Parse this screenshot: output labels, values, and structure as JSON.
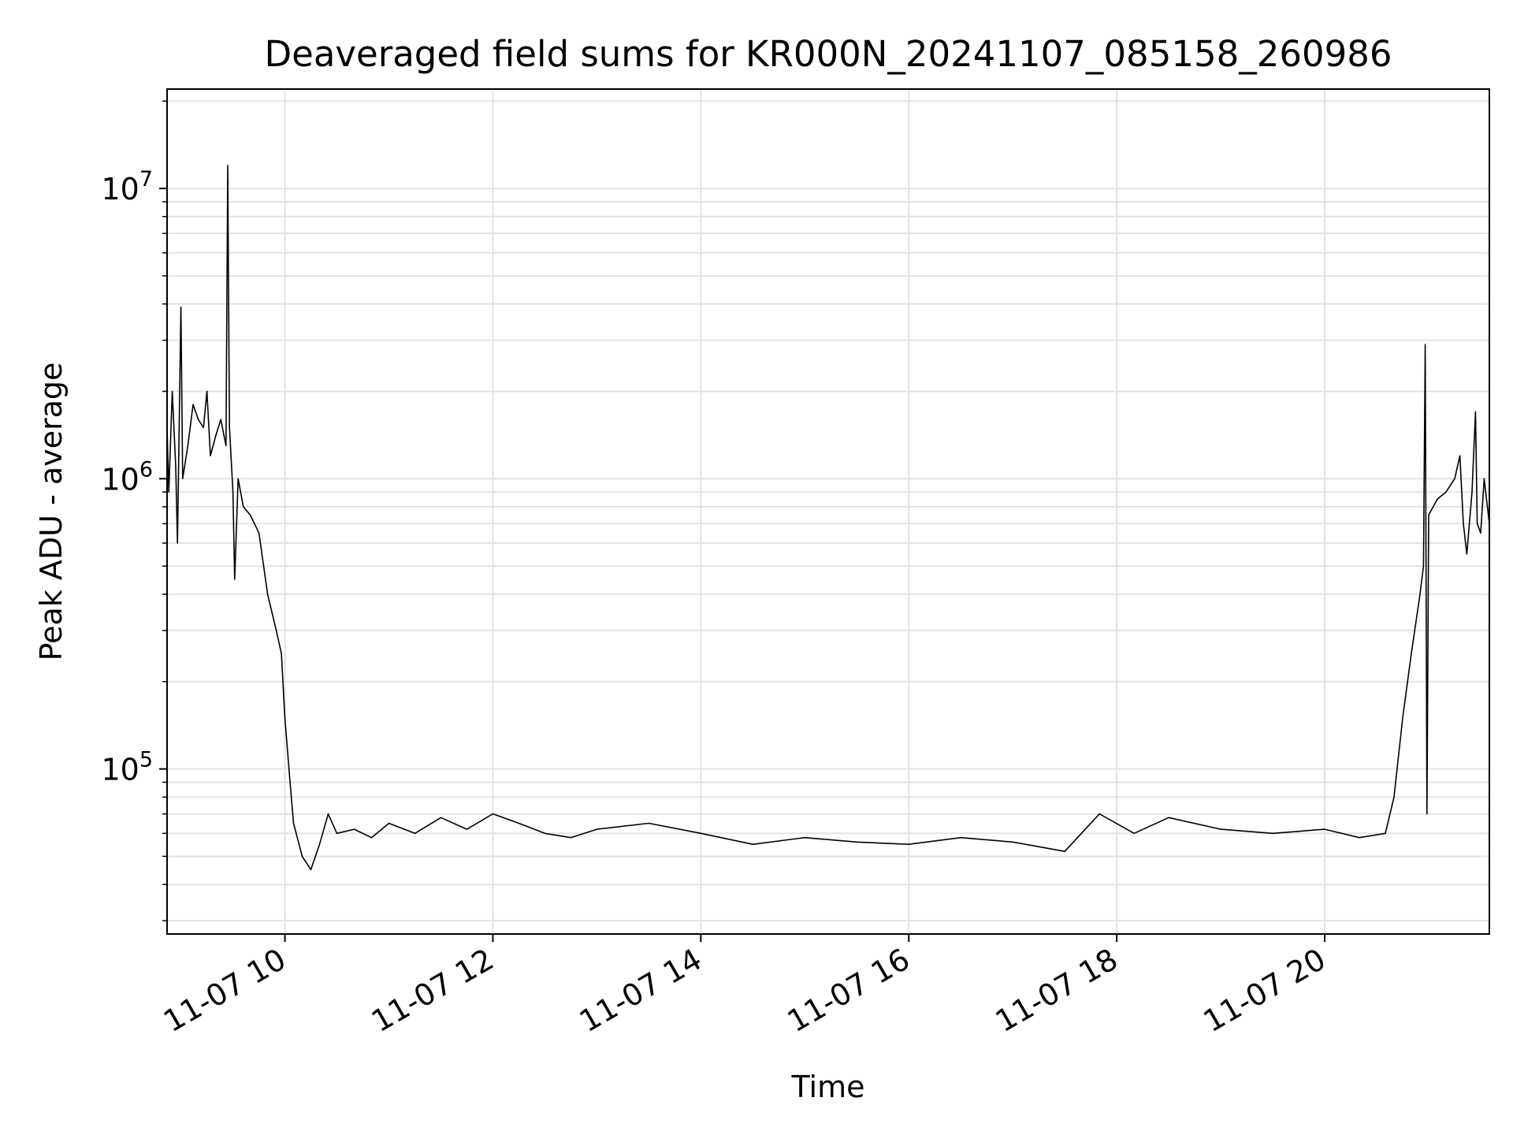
{
  "chart_data": {
    "type": "line",
    "title": "Deaveraged field sums for KR000N_20241107_085158_260986",
    "xlabel": "Time",
    "ylabel": "Peak ADU - average",
    "x_range": [
      "2024-11-07 08:52",
      "2024-11-07 21:35"
    ],
    "x_ticks": [
      "11-07 10",
      "11-07 12",
      "11-07 14",
      "11-07 16",
      "11-07 18",
      "11-07 20"
    ],
    "y_scale": "log",
    "y_range": [
      27000,
      22000000
    ],
    "y_ticks": [
      {
        "base": "10",
        "exp": "5",
        "value": 100000
      },
      {
        "base": "10",
        "exp": "6",
        "value": 1000000
      },
      {
        "base": "10",
        "exp": "7",
        "value": 10000000
      }
    ],
    "grid": true,
    "colors": {
      "line": "#000000",
      "grid": "#e3e3e3",
      "axis": "#000000"
    },
    "series": [
      {
        "points": [
          [
            "2024-11-07 08:52",
            1500000
          ],
          [
            "2024-11-07 08:53",
            900000
          ],
          [
            "2024-11-07 08:55",
            2000000
          ],
          [
            "2024-11-07 08:57",
            1100000
          ],
          [
            "2024-11-07 08:58",
            600000
          ],
          [
            "2024-11-07 09:00",
            3900000
          ],
          [
            "2024-11-07 09:01",
            1000000
          ],
          [
            "2024-11-07 09:04",
            1300000
          ],
          [
            "2024-11-07 09:07",
            1800000
          ],
          [
            "2024-11-07 09:10",
            1600000
          ],
          [
            "2024-11-07 09:13",
            1500000
          ],
          [
            "2024-11-07 09:15",
            2000000
          ],
          [
            "2024-11-07 09:17",
            1200000
          ],
          [
            "2024-11-07 09:20",
            1400000
          ],
          [
            "2024-11-07 09:23",
            1600000
          ],
          [
            "2024-11-07 09:26",
            1300000
          ],
          [
            "2024-11-07 09:27",
            12000000
          ],
          [
            "2024-11-07 09:28",
            1500000
          ],
          [
            "2024-11-07 09:30",
            900000
          ],
          [
            "2024-11-07 09:31",
            450000
          ],
          [
            "2024-11-07 09:33",
            1000000
          ],
          [
            "2024-11-07 09:36",
            800000
          ],
          [
            "2024-11-07 09:40",
            750000
          ],
          [
            "2024-11-07 09:45",
            650000
          ],
          [
            "2024-11-07 09:50",
            400000
          ],
          [
            "2024-11-07 09:55",
            300000
          ],
          [
            "2024-11-07 09:58",
            250000
          ],
          [
            "2024-11-07 10:00",
            150000
          ],
          [
            "2024-11-07 10:03",
            90000
          ],
          [
            "2024-11-07 10:05",
            65000
          ],
          [
            "2024-11-07 10:10",
            50000
          ],
          [
            "2024-11-07 10:15",
            45000
          ],
          [
            "2024-11-07 10:20",
            55000
          ],
          [
            "2024-11-07 10:25",
            70000
          ],
          [
            "2024-11-07 10:30",
            60000
          ],
          [
            "2024-11-07 10:40",
            62000
          ],
          [
            "2024-11-07 10:50",
            58000
          ],
          [
            "2024-11-07 11:00",
            65000
          ],
          [
            "2024-11-07 11:15",
            60000
          ],
          [
            "2024-11-07 11:30",
            68000
          ],
          [
            "2024-11-07 11:45",
            62000
          ],
          [
            "2024-11-07 12:00",
            70000
          ],
          [
            "2024-11-07 12:15",
            65000
          ],
          [
            "2024-11-07 12:30",
            60000
          ],
          [
            "2024-11-07 12:45",
            58000
          ],
          [
            "2024-11-07 13:00",
            62000
          ],
          [
            "2024-11-07 13:30",
            65000
          ],
          [
            "2024-11-07 14:00",
            60000
          ],
          [
            "2024-11-07 14:30",
            55000
          ],
          [
            "2024-11-07 15:00",
            58000
          ],
          [
            "2024-11-07 15:30",
            56000
          ],
          [
            "2024-11-07 16:00",
            55000
          ],
          [
            "2024-11-07 16:30",
            58000
          ],
          [
            "2024-11-07 17:00",
            56000
          ],
          [
            "2024-11-07 17:30",
            52000
          ],
          [
            "2024-11-07 17:50",
            70000
          ],
          [
            "2024-11-07 18:10",
            60000
          ],
          [
            "2024-11-07 18:30",
            68000
          ],
          [
            "2024-11-07 19:00",
            62000
          ],
          [
            "2024-11-07 19:30",
            60000
          ],
          [
            "2024-11-07 20:00",
            62000
          ],
          [
            "2024-11-07 20:20",
            58000
          ],
          [
            "2024-11-07 20:35",
            60000
          ],
          [
            "2024-11-07 20:40",
            80000
          ],
          [
            "2024-11-07 20:45",
            150000
          ],
          [
            "2024-11-07 20:50",
            250000
          ],
          [
            "2024-11-07 20:55",
            400000
          ],
          [
            "2024-11-07 20:57",
            500000
          ],
          [
            "2024-11-07 20:58",
            2900000
          ],
          [
            "2024-11-07 20:59",
            70000
          ],
          [
            "2024-11-07 21:00",
            750000
          ],
          [
            "2024-11-07 21:05",
            850000
          ],
          [
            "2024-11-07 21:10",
            900000
          ],
          [
            "2024-11-07 21:15",
            1000000
          ],
          [
            "2024-11-07 21:18",
            1200000
          ],
          [
            "2024-11-07 21:20",
            700000
          ],
          [
            "2024-11-07 21:22",
            550000
          ],
          [
            "2024-11-07 21:25",
            900000
          ],
          [
            "2024-11-07 21:27",
            1700000
          ],
          [
            "2024-11-07 21:28",
            700000
          ],
          [
            "2024-11-07 21:30",
            650000
          ],
          [
            "2024-11-07 21:32",
            1000000
          ],
          [
            "2024-11-07 21:35",
            700000
          ]
        ]
      }
    ]
  }
}
